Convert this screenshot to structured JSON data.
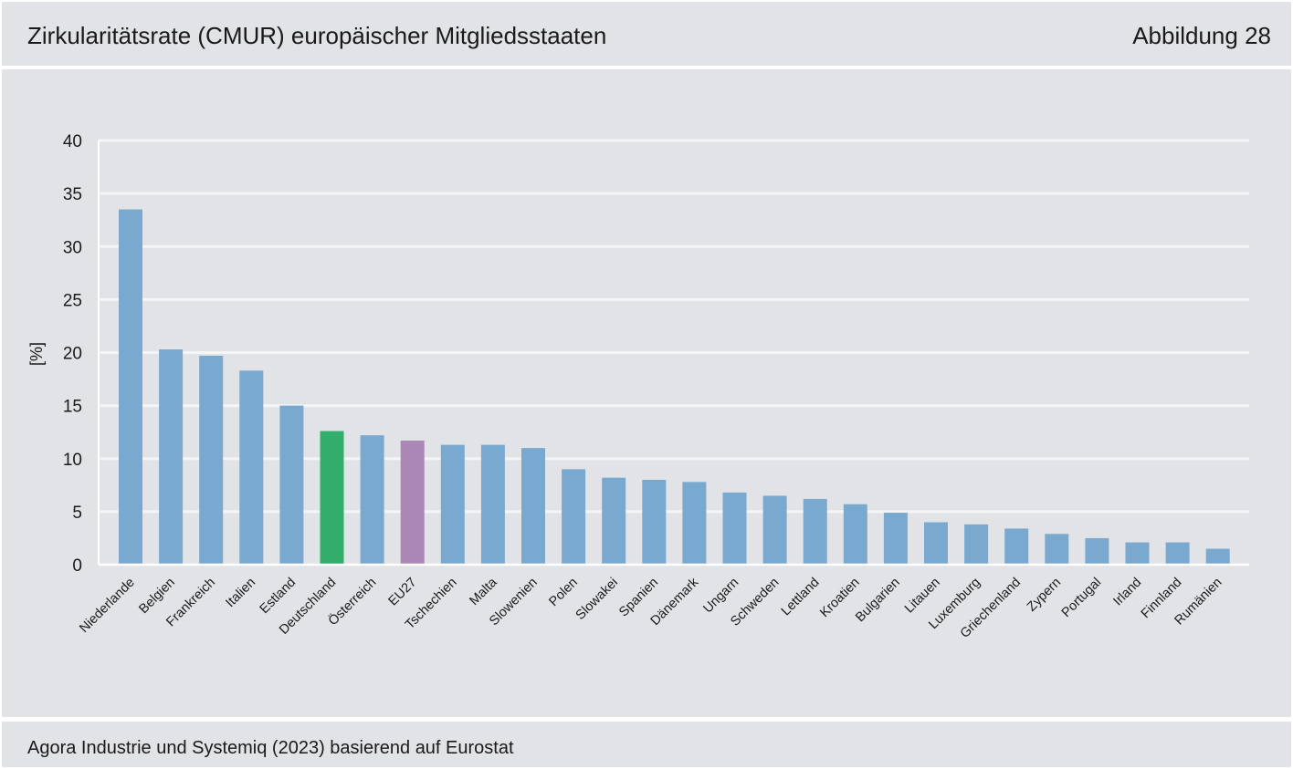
{
  "header": {
    "title": "Zirkularitätsrate (CMUR) europäischer Mitgliedsstaaten",
    "figure_label": "Abbildung 28"
  },
  "footer": {
    "source": "Agora Industrie und Systemiq (2023) basierend auf Eurostat"
  },
  "colors": {
    "default_bar": "#7aa9d0",
    "highlight_germany": "#33ad6b",
    "highlight_eu": "#ab87b5",
    "panel_background": "#e2e3e7",
    "gridline": "#f4f5f7",
    "axis": "#ffffff"
  },
  "chart_data": {
    "type": "bar",
    "title": "",
    "xlabel": "",
    "ylabel": "[%]",
    "ylim": [
      0,
      40
    ],
    "yticks": [
      0,
      5,
      10,
      15,
      20,
      25,
      30,
      35,
      40
    ],
    "grid": true,
    "legend": "none",
    "categories": [
      "Niederlande",
      "Belgien",
      "Frankreich",
      "Italien",
      "Estland",
      "Deutschland",
      "Österreich",
      "EU27",
      "Tschechien",
      "Malta",
      "Slowenien",
      "Polen",
      "Slowakei",
      "Spanien",
      "Dänemark",
      "Ungarn",
      "Schweden",
      "Lettland",
      "Kroatien",
      "Bulgarien",
      "Litauen",
      "Luxemburg",
      "Griechenland",
      "Zypern",
      "Portugal",
      "Irland",
      "Finnland",
      "Rumänien"
    ],
    "values": [
      33.5,
      20.3,
      19.7,
      18.3,
      15.0,
      12.6,
      12.2,
      11.7,
      11.3,
      11.3,
      11.0,
      9.0,
      8.2,
      8.0,
      7.8,
      6.8,
      6.5,
      6.2,
      5.7,
      4.9,
      4.0,
      3.8,
      3.4,
      2.9,
      2.5,
      2.1,
      2.1,
      1.5
    ],
    "highlights": {
      "Deutschland": "highlight_germany",
      "EU27": "highlight_eu"
    }
  }
}
